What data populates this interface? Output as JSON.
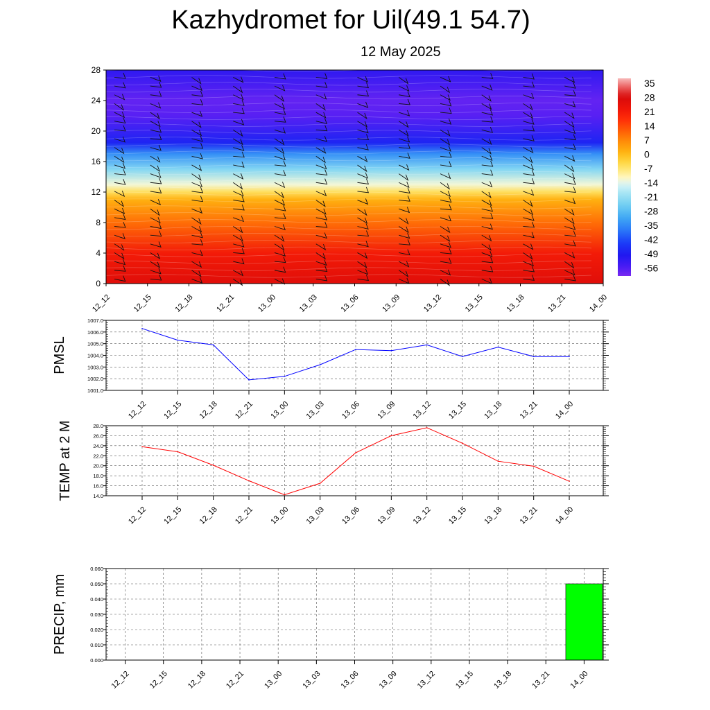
{
  "title": "Kazhydromet for Uil(49.1 54.7)",
  "subtitle": "12 May 2025",
  "time_labels": [
    "12_12",
    "12_15",
    "12_18",
    "12_21",
    "13_00",
    "13_03",
    "13_06",
    "13_09",
    "13_12",
    "13_15",
    "13_18",
    "13_21",
    "14_00"
  ],
  "chart_data": [
    {
      "type": "heatmap",
      "name": "vertical-cross-section",
      "x": [
        "12_12",
        "12_15",
        "12_18",
        "12_21",
        "13_00",
        "13_03",
        "13_06",
        "13_09",
        "13_12",
        "13_15",
        "13_18",
        "13_21",
        "14_00"
      ],
      "ylim": [
        0,
        28
      ],
      "yticks": [
        0,
        4,
        8,
        12,
        16,
        20,
        24,
        28
      ],
      "colorbar_labels": [
        "35",
        "28",
        "21",
        "14",
        "7",
        "0",
        "-7",
        "-14",
        "-21",
        "-28",
        "-35",
        "-42",
        "-49",
        "-56"
      ],
      "profile": [
        {
          "y": 0,
          "value": 24
        },
        {
          "y": 4,
          "value": 19
        },
        {
          "y": 8,
          "value": 8
        },
        {
          "y": 11,
          "value": 0
        },
        {
          "y": 12,
          "value": -7
        },
        {
          "y": 13,
          "value": -14
        },
        {
          "y": 15,
          "value": -24
        },
        {
          "y": 17,
          "value": -35
        },
        {
          "y": 18.5,
          "value": -48
        },
        {
          "y": 22,
          "value": -57
        },
        {
          "y": 24,
          "value": -58
        },
        {
          "y": 28,
          "value": -52
        }
      ],
      "wind_barbs": "shown"
    },
    {
      "type": "line",
      "name": "pmsl",
      "ylabel": "PMSL",
      "x": [
        "12_12",
        "12_15",
        "12_18",
        "12_21",
        "13_00",
        "13_03",
        "13_06",
        "13_09",
        "13_12",
        "13_15",
        "13_18",
        "13_21",
        "14_00"
      ],
      "values": [
        1006.3,
        1005.3,
        1004.9,
        1001.9,
        1002.2,
        1003.2,
        1004.5,
        1004.4,
        1004.9,
        1003.9,
        1004.7,
        1003.9,
        1003.9
      ],
      "ylim": [
        1001.0,
        1007.0
      ],
      "yticks": [
        "1001.0",
        "1002.0",
        "1003.0",
        "1004.0",
        "1005.0",
        "1006.0",
        "1007.0"
      ],
      "color": "#0000ff",
      "grid": true
    },
    {
      "type": "line",
      "name": "temp",
      "ylabel": "TEMP at 2 M",
      "x": [
        "12_12",
        "12_15",
        "12_18",
        "12_21",
        "13_00",
        "13_03",
        "13_06",
        "13_09",
        "13_12",
        "13_15",
        "13_18",
        "13_21",
        "14_00"
      ],
      "values": [
        23.8,
        22.8,
        20.1,
        17.0,
        14.2,
        16.5,
        22.6,
        26.0,
        27.6,
        24.5,
        20.9,
        19.9,
        16.9
      ],
      "ylim": [
        14.0,
        28.0
      ],
      "yticks": [
        "14.0",
        "16.0",
        "18.0",
        "20.0",
        "22.0",
        "24.0",
        "26.0",
        "28.0"
      ],
      "color": "#ff0000",
      "grid": true
    },
    {
      "type": "bar",
      "name": "precip",
      "ylabel": "PRECIP, mm",
      "categories": [
        "12_12",
        "12_15",
        "12_18",
        "12_21",
        "13_00",
        "13_03",
        "13_06",
        "13_09",
        "13_12",
        "13_15",
        "13_18",
        "13_21",
        "14_00"
      ],
      "values": [
        0,
        0,
        0,
        0,
        0,
        0,
        0,
        0,
        0,
        0,
        0,
        0,
        0.05
      ],
      "ylim": [
        0.0,
        0.06
      ],
      "yticks": [
        "0.000",
        "0.010",
        "0.020",
        "0.030",
        "0.040",
        "0.050",
        "0.060"
      ],
      "color": "#00ff00",
      "grid": true
    }
  ]
}
